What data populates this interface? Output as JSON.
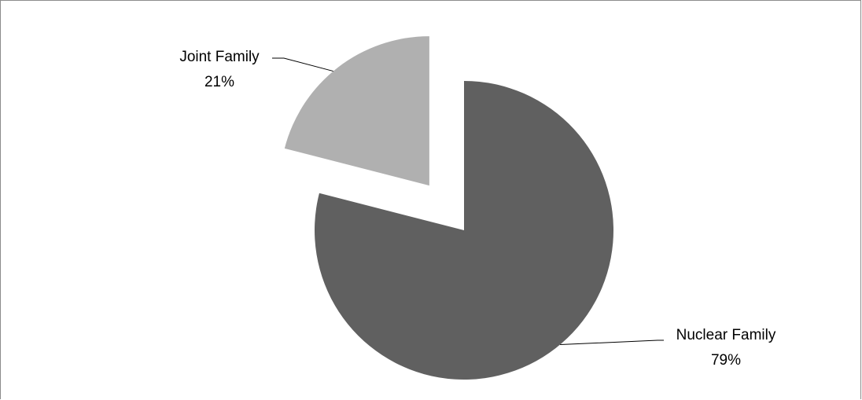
{
  "chart_data": {
    "type": "pie",
    "title": "",
    "slices": [
      {
        "label": "Nuclear Family",
        "value": 79,
        "display": "79%",
        "color": "#606060",
        "exploded": false
      },
      {
        "label": "Joint Family",
        "value": 21,
        "display": "21%",
        "color": "#b0b0b0",
        "exploded": true
      }
    ],
    "legend": "none",
    "label_placement": "outside with leader lines"
  }
}
